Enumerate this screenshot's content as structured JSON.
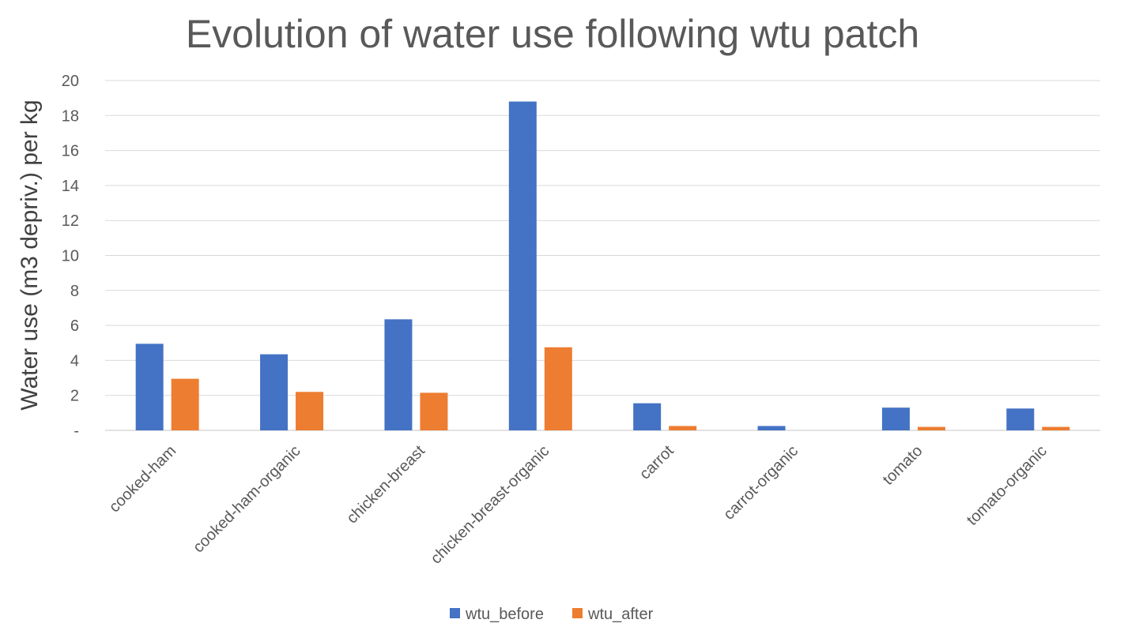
{
  "chart_data": {
    "type": "bar",
    "title": "Evolution of water use following wtu patch",
    "xlabel": "",
    "ylabel": "Water use (m3 depriv.) per kg",
    "ylim": [
      0,
      20
    ],
    "yticks": [
      {
        "value": 0,
        "label": "-"
      },
      {
        "value": 2,
        "label": "2"
      },
      {
        "value": 4,
        "label": "4"
      },
      {
        "value": 6,
        "label": "6"
      },
      {
        "value": 8,
        "label": "8"
      },
      {
        "value": 10,
        "label": "10"
      },
      {
        "value": 12,
        "label": "12"
      },
      {
        "value": 14,
        "label": "14"
      },
      {
        "value": 16,
        "label": "16"
      },
      {
        "value": 18,
        "label": "18"
      },
      {
        "value": 20,
        "label": "20"
      }
    ],
    "grid": true,
    "legend_position": "bottom",
    "categories": [
      "cooked-ham",
      "cooked-ham-organic",
      "chicken-breast",
      "chicken-breast-organic",
      "carrot",
      "carrot-organic",
      "tomato",
      "tomato-organic"
    ],
    "series": [
      {
        "name": "wtu_before",
        "color": "#4472C4",
        "values": [
          4.95,
          4.35,
          6.35,
          18.8,
          1.55,
          0.25,
          1.3,
          1.25
        ]
      },
      {
        "name": "wtu_after",
        "color": "#ED7D31",
        "values": [
          2.95,
          2.2,
          2.15,
          4.75,
          0.25,
          0.0,
          0.2,
          0.2
        ]
      }
    ]
  }
}
